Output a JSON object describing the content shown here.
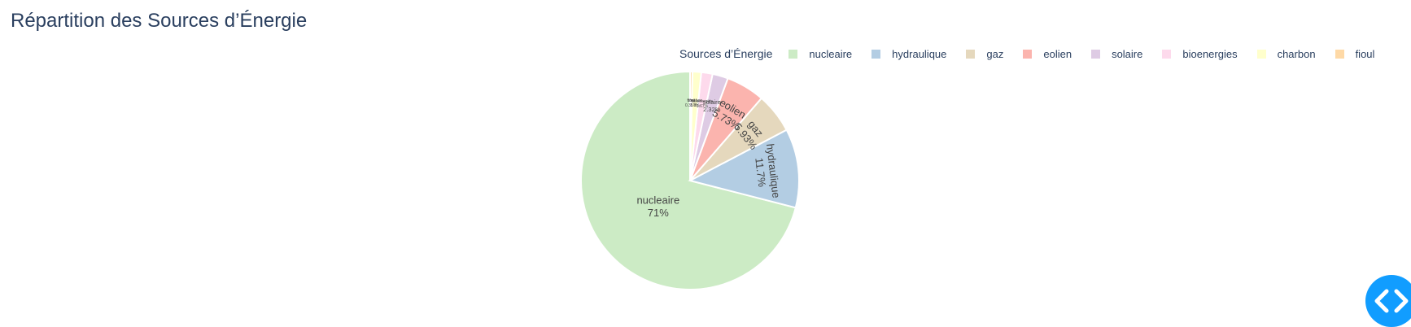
{
  "chart_data": {
    "type": "pie",
    "title": "Répartition des Sources d’Énergie",
    "legend_title": "Sources d’Énergie",
    "legend_position": "top-right",
    "slices": [
      {
        "label": "nucleaire",
        "value": 71.0,
        "text": "71%",
        "color": "#ccebc5"
      },
      {
        "label": "hydraulique",
        "value": 11.7,
        "text": "11.7%",
        "color": "#b3cde3"
      },
      {
        "label": "gaz",
        "value": 5.93,
        "text": "5.93%",
        "color": "#e5d8bd"
      },
      {
        "label": "eolien",
        "value": 5.73,
        "text": "5.73%",
        "color": "#fbb4ae"
      },
      {
        "label": "solaire",
        "value": 2.32,
        "text": "2.32%",
        "color": "#decbe4"
      },
      {
        "label": "bioenergies",
        "value": 1.67,
        "text": "1.67%",
        "color": "#fddaec"
      },
      {
        "label": "charbon",
        "value": 1.3,
        "text": "1.3%",
        "color": "#ffffcc"
      },
      {
        "label": "fioul",
        "value": 0.35,
        "text": "0.35%",
        "color": "#fed9a6"
      }
    ]
  },
  "code_toggle_icon": "code-icon"
}
